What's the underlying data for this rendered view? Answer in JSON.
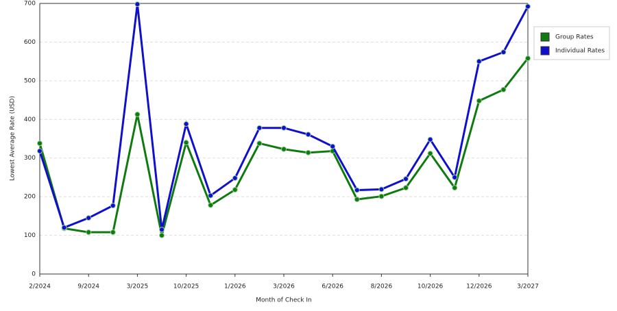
{
  "chart_data": {
    "type": "line",
    "x_label": "Month of Check In",
    "y_label": "Lowest Average Rate (USD)",
    "categories": [
      "2/2024",
      null,
      "9/2024",
      null,
      "3/2025",
      null,
      "10/2025",
      null,
      "1/2026",
      null,
      "3/2026",
      null,
      "6/2026",
      null,
      "8/2026",
      null,
      "10/2026",
      null,
      "12/2026",
      null,
      "3/2027"
    ],
    "series": [
      {
        "name": "Group Rates",
        "color": "#0f7a0f",
        "values": [
          338,
          118,
          108,
          108,
          413,
          100,
          340,
          178,
          218,
          338,
          323,
          314,
          318,
          193,
          201,
          223,
          312,
          223,
          448,
          477,
          558
        ]
      },
      {
        "name": "Individual Rates",
        "color": "#1010cc",
        "values": [
          318,
          120,
          145,
          177,
          698,
          115,
          388,
          203,
          248,
          378,
          378,
          361,
          330,
          217,
          219,
          246,
          348,
          250,
          550,
          574,
          692
        ]
      }
    ],
    "ylim": [
      0,
      700
    ],
    "yticks": [
      0,
      100,
      200,
      300,
      400,
      500,
      600,
      700
    ],
    "grid": true,
    "legend": "right"
  }
}
